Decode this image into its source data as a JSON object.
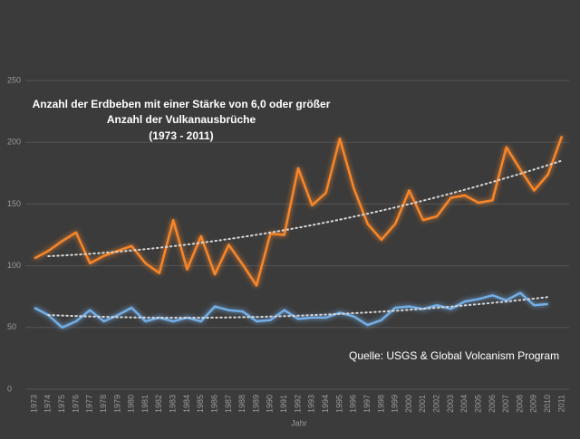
{
  "chart_data": {
    "type": "line",
    "title": [
      "Anzahl der Erdbeben mit einer Stärke von 6,0 oder größer",
      "Anzahl der Vulkanausbrüche",
      "(1973 - 2011)"
    ],
    "source": "Quelle: USGS & Global Volcanism Program",
    "xlabel": "Jahr",
    "x": [
      1973,
      1974,
      1975,
      1976,
      1977,
      1978,
      1979,
      1980,
      1981,
      1982,
      1983,
      1984,
      1985,
      1986,
      1987,
      1988,
      1989,
      1990,
      1991,
      1992,
      1993,
      1994,
      1995,
      1996,
      1997,
      1998,
      1999,
      2000,
      2001,
      2002,
      2003,
      2004,
      2005,
      2006,
      2007,
      2008,
      2009,
      2010,
      2011
    ],
    "series": [
      {
        "color": "#f7862a",
        "values": [
          106,
          112,
          120,
          127,
          102,
          108,
          112,
          116,
          102,
          94,
          137,
          97,
          124,
          93,
          117,
          101,
          84,
          126,
          125,
          179,
          149,
          159,
          203,
          163,
          134,
          121,
          134,
          161,
          137,
          140,
          155,
          157,
          151,
          153,
          196,
          178,
          161,
          174,
          205
        ]
      },
      {
        "color": "#74aee6",
        "values": [
          66,
          60,
          50,
          55,
          64,
          55,
          60,
          66,
          55,
          58,
          55,
          58,
          55,
          67,
          64,
          63,
          55,
          56,
          64,
          57,
          58,
          58,
          62,
          59,
          52,
          56,
          66,
          67,
          65,
          68,
          65,
          71,
          73,
          76,
          72,
          78,
          68,
          69,
          null
        ]
      }
    ],
    "trendline": {
      "degree": 2,
      "color": "#d8d8d8",
      "style": "dotted"
    },
    "ylim": [
      0,
      250
    ],
    "yticks": [
      0,
      50,
      100,
      150,
      200,
      250
    ],
    "grid": true
  }
}
